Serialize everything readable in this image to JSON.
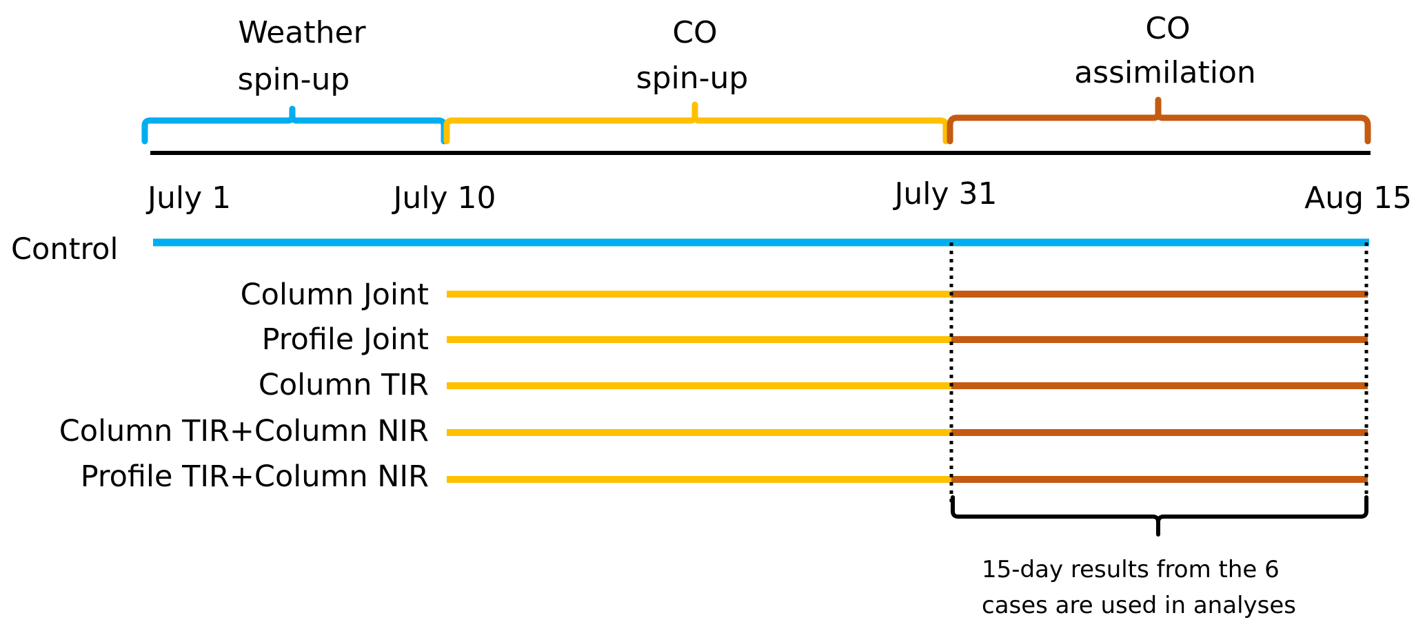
{
  "colors": {
    "weather": "#00AEEF",
    "spinup": "#FFC000",
    "assimilation": "#C55A11",
    "axis": "#000000"
  },
  "phases": [
    {
      "lines": [
        "Weather",
        "spin-up"
      ],
      "color": "#00AEEF"
    },
    {
      "lines": [
        "CO",
        "spin-up"
      ],
      "color": "#FFC000"
    },
    {
      "lines": [
        "CO",
        "assimilation"
      ],
      "color": "#C55A11"
    }
  ],
  "dates": [
    "July 1",
    "July 10",
    "July 31",
    "Aug 15"
  ],
  "control": {
    "label": "Control",
    "color": "#00AEEF"
  },
  "cases": [
    {
      "label": "Column Joint"
    },
    {
      "label": "Profile Joint"
    },
    {
      "label": "Column TIR"
    },
    {
      "label": "Column TIR+Column NIR"
    },
    {
      "label": "Profile TIR+Column NIR"
    }
  ],
  "note": {
    "lines": [
      "15-day results from the 6",
      "cases are used in analyses"
    ]
  }
}
